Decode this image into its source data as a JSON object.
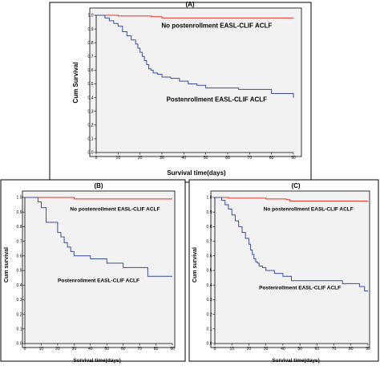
{
  "chart_data": [
    {
      "type": "line",
      "title": "(A)",
      "xlabel": "Survival time(days)",
      "ylabel": "Cum Survival",
      "xlim": [
        0,
        90
      ],
      "ylim": [
        0,
        1.0
      ],
      "xticks": [
        "0",
        "10",
        "20",
        "30",
        "40",
        "50",
        "60",
        "70",
        "80",
        "90"
      ],
      "yticks": [
        "0.0",
        "0.1",
        "0.2",
        "0.3",
        "0.4",
        "0.5",
        "0.6",
        "0.7",
        "0.8",
        "0.9",
        "1.0"
      ],
      "grid": false,
      "annotations": [
        {
          "text": "No postenrollment EASL-CLIF ACLF",
          "x": 55,
          "y": 0.91
        },
        {
          "text": "Postenrollment EASL-CLIF ACLF",
          "x": 55,
          "y": 0.37
        }
      ],
      "series": [
        {
          "color": "#e0352b",
          "x": [
            0,
            10,
            25,
            30,
            90
          ],
          "y": [
            1.0,
            0.995,
            0.99,
            0.98,
            0.98
          ]
        },
        {
          "color": "#3b4e9a",
          "x": [
            0,
            4,
            6,
            8,
            10,
            12,
            14,
            16,
            18,
            19,
            20,
            21,
            22,
            23,
            24,
            25,
            26,
            28,
            30,
            34,
            38,
            42,
            46,
            50,
            65,
            80,
            90
          ],
          "y": [
            1.0,
            0.98,
            0.96,
            0.94,
            0.92,
            0.88,
            0.85,
            0.82,
            0.79,
            0.76,
            0.73,
            0.7,
            0.67,
            0.64,
            0.61,
            0.6,
            0.58,
            0.57,
            0.55,
            0.54,
            0.52,
            0.5,
            0.49,
            0.47,
            0.46,
            0.43,
            0.4
          ]
        }
      ]
    },
    {
      "type": "line",
      "title": "(B)",
      "xlabel": "Survival time(days)",
      "ylabel": "Cum survival",
      "xlim": [
        0,
        90
      ],
      "ylim": [
        0,
        1.0
      ],
      "xticks": [
        "0",
        "10",
        "20",
        "30",
        "40",
        "50",
        "60",
        "70",
        "80",
        "90"
      ],
      "yticks": [
        "0.0",
        "0.1",
        "0.2",
        "0.3",
        "0.4",
        "0.5",
        "0.6",
        "0.7",
        "0.8",
        "0.9",
        "1.0"
      ],
      "grid": false,
      "annotations": [
        {
          "text": "No postenrollment EASL-CLIF ACLF",
          "x": 55,
          "y": 0.91
        },
        {
          "text": "Postenrollment EASL-CLIF ACLF",
          "x": 45,
          "y": 0.42
        }
      ],
      "series": [
        {
          "color": "#e0352b",
          "x": [
            0,
            30,
            90
          ],
          "y": [
            1.0,
            0.99,
            0.99
          ]
        },
        {
          "color": "#3b4e9a",
          "x": [
            0,
            8,
            10,
            13,
            20,
            22,
            24,
            26,
            28,
            30,
            40,
            50,
            60,
            75,
            90
          ],
          "y": [
            1.0,
            0.97,
            0.93,
            0.83,
            0.76,
            0.73,
            0.69,
            0.66,
            0.63,
            0.6,
            0.58,
            0.55,
            0.52,
            0.46,
            0.46
          ]
        }
      ]
    },
    {
      "type": "line",
      "title": "(C)",
      "xlabel": "Survival time(days)",
      "ylabel": "Cum survival",
      "xlim": [
        0,
        90
      ],
      "ylim": [
        0,
        1.0
      ],
      "xticks": [
        "0",
        "10",
        "20",
        "30",
        "40",
        "50",
        "60",
        "70",
        "80",
        "90"
      ],
      "yticks": [
        "0.0",
        "0.1",
        "0.2",
        "0.3",
        "0.4",
        "0.5",
        "0.6",
        "0.7",
        "0.8",
        "0.9",
        "1.0"
      ],
      "grid": false,
      "annotations": [
        {
          "text": "No postenrollment EASL-CLIF ACLF",
          "x": 55,
          "y": 0.91
        },
        {
          "text": "Postenrollment EASL-CLIF ACLF",
          "x": 50,
          "y": 0.37
        }
      ],
      "series": [
        {
          "color": "#e0352b",
          "x": [
            0,
            8,
            30,
            40,
            42,
            44,
            90
          ],
          "y": [
            1.0,
            0.995,
            0.99,
            0.99,
            0.985,
            0.975,
            0.975
          ]
        },
        {
          "color": "#3b4e9a",
          "x": [
            0,
            4,
            6,
            8,
            10,
            12,
            14,
            16,
            18,
            20,
            21,
            22,
            23,
            24,
            25,
            26,
            28,
            30,
            35,
            40,
            45,
            60,
            75,
            85,
            88,
            90
          ],
          "y": [
            1.0,
            0.98,
            0.95,
            0.92,
            0.88,
            0.84,
            0.8,
            0.76,
            0.72,
            0.68,
            0.64,
            0.61,
            0.58,
            0.56,
            0.55,
            0.53,
            0.52,
            0.5,
            0.48,
            0.46,
            0.43,
            0.43,
            0.41,
            0.39,
            0.36,
            0.36
          ]
        }
      ]
    }
  ]
}
